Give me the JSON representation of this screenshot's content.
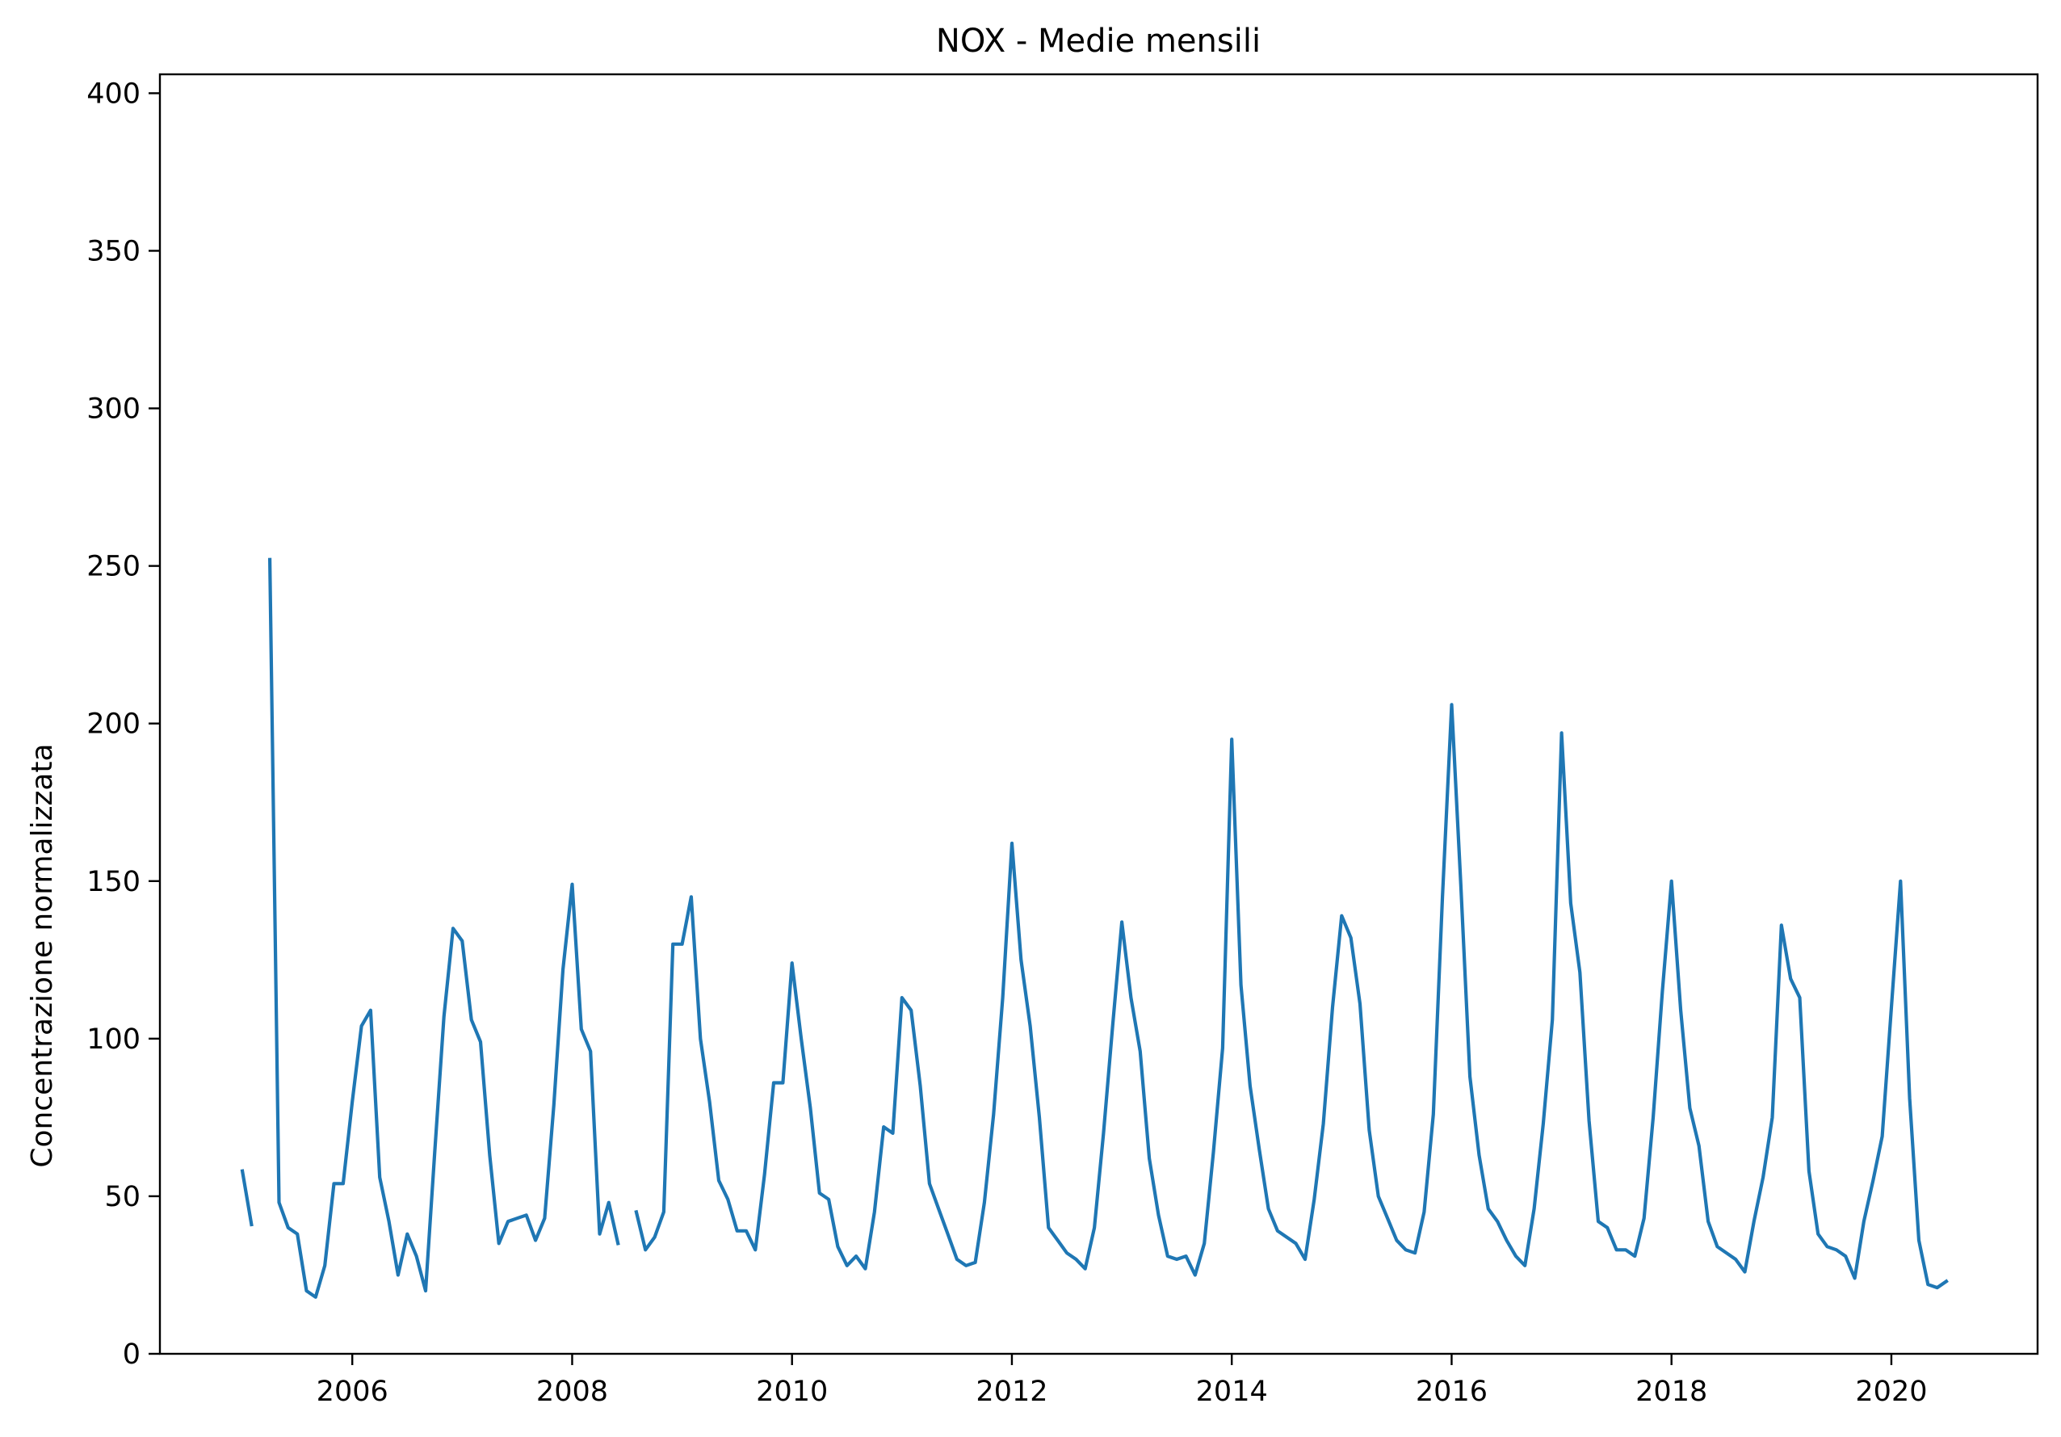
{
  "chart_data": {
    "type": "line",
    "title": "NOX - Medie mensili",
    "xlabel": "",
    "ylabel": "Concentrazione normalizzata",
    "xlim": [
      2004.25,
      2021.33
    ],
    "ylim": [
      0,
      406
    ],
    "xticks": [
      2006,
      2008,
      2010,
      2012,
      2014,
      2016,
      2018,
      2020
    ],
    "yticks": [
      0,
      50,
      100,
      150,
      200,
      250,
      300,
      350,
      400
    ],
    "grid": false,
    "color": "#1f77b4",
    "series": [
      {
        "segments": [
          {
            "start": "2005-01",
            "values": [
              58,
              41
            ]
          },
          {
            "start": "2005-04",
            "values": [
              252,
              48,
              40,
              38,
              20,
              18,
              28,
              54,
              54,
              80,
              104,
              109,
              56,
              42,
              25,
              38,
              31,
              20,
              64,
              107,
              135,
              131,
              106,
              99,
              63,
              35,
              42,
              43,
              44,
              36,
              43,
              79,
              122,
              149,
              103,
              96,
              38,
              48,
              35
            ]
          },
          {
            "start": "2008-08",
            "values": [
              45,
              33,
              37,
              45,
              130,
              130,
              145,
              100,
              80,
              55,
              49,
              39,
              39,
              33,
              57,
              86,
              86,
              124,
              100,
              78,
              51,
              49,
              34,
              28,
              31,
              27,
              45,
              72,
              70,
              113,
              109,
              85,
              54,
              46,
              38,
              30,
              28,
              29,
              48,
              76,
              113,
              162,
              125,
              104,
              75,
              40,
              36,
              32,
              30,
              27,
              40,
              70,
              104,
              137,
              113,
              96,
              62,
              44,
              31,
              30,
              31,
              25,
              35,
              64,
              97,
              195,
              117,
              85,
              65,
              46,
              39,
              37,
              35,
              30,
              49,
              73,
              110,
              139,
              132,
              111,
              71,
              50,
              43,
              36,
              33,
              32,
              45,
              76,
              145,
              206,
              149,
              88,
              63,
              46,
              42,
              36,
              31,
              28,
              46,
              73,
              106,
              197,
              143,
              121,
              74,
              42,
              40,
              33,
              33,
              31,
              43,
              75,
              115,
              150,
              109,
              78,
              66,
              42,
              34,
              32,
              30,
              26,
              42,
              56,
              75,
              136,
              119,
              113,
              58,
              38,
              34,
              33,
              31,
              24,
              42,
              55,
              69,
              110,
              150,
              81,
              36,
              22,
              21,
              23
            ]
          }
        ]
      }
    ]
  }
}
